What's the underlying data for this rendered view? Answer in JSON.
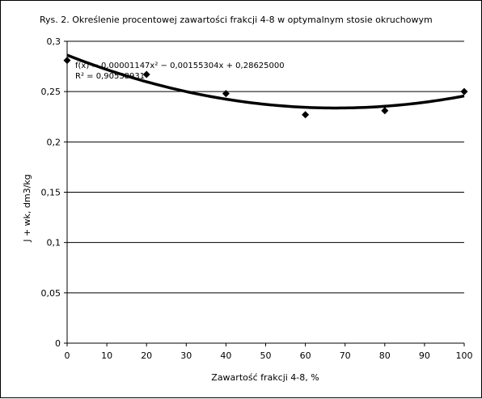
{
  "chart_data": {
    "type": "scatter",
    "title": "Rys. 2. Określenie procentowej zawartości frakcji 4-8 w optymalnym stosie okruchowym",
    "xlabel": "Zawartość frakcji 4-8, %",
    "ylabel": "J + wk, dm3/kg",
    "xlim": [
      0,
      100
    ],
    "ylim": [
      0,
      0.3
    ],
    "x_ticks": [
      "0",
      "10",
      "20",
      "30",
      "40",
      "50",
      "60",
      "70",
      "80",
      "90",
      "100"
    ],
    "y_ticks": [
      "0",
      "0,05",
      "0,1",
      "0,15",
      "0,2",
      "0,25",
      "0,3"
    ],
    "grid": "horizontal",
    "legend": "none",
    "series": [
      {
        "marker": "diamond",
        "color": "#000000",
        "x": [
          0,
          20,
          40,
          60,
          80,
          100
        ],
        "y": [
          0.281,
          0.267,
          0.248,
          0.227,
          0.231,
          0.25
        ]
      }
    ],
    "trendline": {
      "kind": "polynomial",
      "coefficients": [
        0.28625,
        -0.00155304,
        1.147e-05
      ],
      "equation": "f(x) = 0,00001147x² − 0,00155304x + 0,28625000",
      "r_squared": "R² = 0,90538931",
      "color": "#000000"
    }
  }
}
